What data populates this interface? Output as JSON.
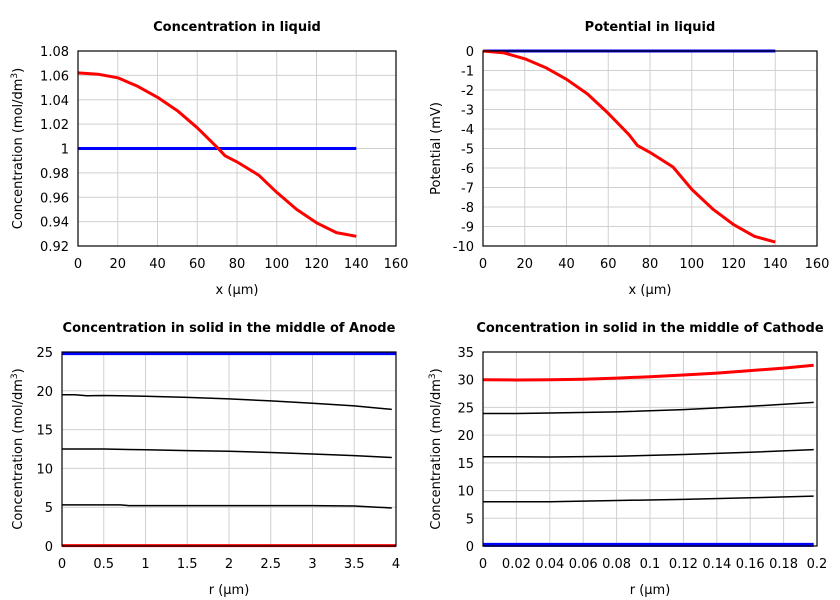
{
  "chart_data": [
    {
      "type": "line",
      "title": "Concentration in liquid",
      "xlabel": "x (µm)",
      "ylabel": "Concentration (mol/dm",
      "ylabel_sup": "3",
      "ylabel_end": ")",
      "xlim": [
        0,
        160
      ],
      "ylim": [
        0.92,
        1.08
      ],
      "grid": true,
      "xticks": [
        "0",
        "20",
        "40",
        "60",
        "80",
        "100",
        "120",
        "140",
        "160"
      ],
      "yticks": [
        "0.92",
        "0.94",
        "0.96",
        "0.98",
        "1",
        "1.02",
        "1.04",
        "1.06",
        "1.08"
      ],
      "series": [
        {
          "color": "#0000ff",
          "width": 3,
          "x": [
            0,
            140
          ],
          "y": [
            1,
            1
          ]
        },
        {
          "color": "#ff0000",
          "width": 3,
          "x": [
            0,
            10,
            20,
            30,
            40,
            50,
            60,
            70,
            74,
            80,
            91,
            100,
            110,
            120,
            130,
            140
          ],
          "y": [
            1.062,
            1.061,
            1.058,
            1.051,
            1.042,
            1.031,
            1.017,
            1.001,
            0.994,
            0.989,
            0.978,
            0.964,
            0.95,
            0.939,
            0.931,
            0.928
          ]
        }
      ]
    },
    {
      "type": "line",
      "title": "Potential in liquid",
      "xlabel": "x (µm)",
      "ylabel": "Potential (mV)",
      "ylabel_sup": "",
      "ylabel_end": "",
      "xlim": [
        0,
        160
      ],
      "ylim": [
        -10,
        0
      ],
      "grid": true,
      "xticks": [
        "0",
        "20",
        "40",
        "60",
        "80",
        "100",
        "120",
        "140",
        "160"
      ],
      "yticks": [
        "-10",
        "-9",
        "-8",
        "-7",
        "-6",
        "-5",
        "-4",
        "-3",
        "-2",
        "-1",
        "0"
      ],
      "series": [
        {
          "color": "#0000ff",
          "width": 3,
          "x": [
            0,
            140
          ],
          "y": [
            0,
            0
          ]
        },
        {
          "color": "#ff0000",
          "width": 3,
          "x": [
            0,
            10,
            20,
            30,
            40,
            50,
            60,
            70,
            74,
            80,
            91,
            100,
            110,
            120,
            130,
            140
          ],
          "y": [
            0,
            -0.1,
            -0.4,
            -0.85,
            -1.45,
            -2.2,
            -3.2,
            -4.3,
            -4.85,
            -5.2,
            -5.95,
            -7.1,
            -8.1,
            -8.9,
            -9.5,
            -9.8
          ]
        }
      ]
    },
    {
      "type": "line",
      "title": "Concentration in solid in the middle of Anode",
      "xlabel": "r (µm)",
      "ylabel": "Concentration (mol/dm",
      "ylabel_sup": "3",
      "ylabel_end": ")",
      "xlim": [
        0,
        4
      ],
      "ylim": [
        0,
        25
      ],
      "grid": true,
      "xticks": [
        "0",
        "0.5",
        "1",
        "1.5",
        "2",
        "2.5",
        "3",
        "3.5",
        "4"
      ],
      "yticks": [
        "0",
        "5",
        "10",
        "15",
        "20",
        "25"
      ],
      "series": [
        {
          "color": "#0000ff",
          "width": 3,
          "x": [
            0,
            4
          ],
          "y": [
            24.8,
            24.8
          ]
        },
        {
          "color": "#000000",
          "width": 1.5,
          "x": [
            0,
            0.15,
            0.3,
            0.5,
            1,
            1.5,
            2,
            2.5,
            3,
            3.5,
            3.95
          ],
          "y": [
            19.5,
            19.5,
            19.35,
            19.4,
            19.3,
            19.15,
            18.95,
            18.7,
            18.4,
            18.05,
            17.6
          ]
        },
        {
          "color": "#000000",
          "width": 1.5,
          "x": [
            0,
            0.5,
            1,
            1.5,
            2,
            2.5,
            3,
            3.5,
            3.95
          ],
          "y": [
            12.5,
            12.5,
            12.4,
            12.3,
            12.2,
            12.05,
            11.85,
            11.65,
            11.4
          ]
        },
        {
          "color": "#000000",
          "width": 1.5,
          "x": [
            0,
            0.7,
            0.8,
            1,
            2,
            3,
            3.5,
            3.95
          ],
          "y": [
            5.3,
            5.3,
            5.2,
            5.2,
            5.2,
            5.2,
            5.15,
            4.9
          ]
        },
        {
          "color": "#ff0000",
          "width": 3,
          "x": [
            0,
            4
          ],
          "y": [
            0.05,
            0.05
          ]
        }
      ]
    },
    {
      "type": "line",
      "title": "Concentration in solid in the middle of Cathode",
      "xlabel": "r (µm)",
      "ylabel": "Concentration (mol/dm",
      "ylabel_sup": "3",
      "ylabel_end": ")",
      "xlim": [
        0,
        0.2
      ],
      "ylim": [
        0,
        35
      ],
      "grid": true,
      "xticks": [
        "0",
        "0.02",
        "0.04",
        "0.06",
        "0.08",
        "0.1",
        "0.12",
        "0.14",
        "0.16",
        "0.18",
        "0.2"
      ],
      "yticks": [
        "0",
        "5",
        "10",
        "15",
        "20",
        "25",
        "30",
        "35"
      ],
      "series": [
        {
          "color": "#ff0000",
          "width": 3,
          "x": [
            0,
            0.02,
            0.04,
            0.06,
            0.08,
            0.1,
            0.12,
            0.14,
            0.16,
            0.18,
            0.198
          ],
          "y": [
            30,
            29.95,
            30,
            30.1,
            30.3,
            30.55,
            30.85,
            31.2,
            31.65,
            32.1,
            32.6
          ]
        },
        {
          "color": "#000000",
          "width": 1.5,
          "x": [
            0,
            0.02,
            0.04,
            0.08,
            0.12,
            0.16,
            0.198
          ],
          "y": [
            23.9,
            23.9,
            24.0,
            24.2,
            24.6,
            25.2,
            25.9
          ]
        },
        {
          "color": "#000000",
          "width": 1.5,
          "x": [
            0,
            0.02,
            0.04,
            0.08,
            0.12,
            0.16,
            0.198
          ],
          "y": [
            16.1,
            16.1,
            16.05,
            16.2,
            16.5,
            16.9,
            17.4
          ]
        },
        {
          "color": "#000000",
          "width": 1.5,
          "x": [
            0,
            0.02,
            0.04,
            0.08,
            0.12,
            0.16,
            0.198
          ],
          "y": [
            8.0,
            8.0,
            8.0,
            8.2,
            8.4,
            8.7,
            9.0
          ]
        },
        {
          "color": "#0000ff",
          "width": 4,
          "x": [
            0,
            0.198
          ],
          "y": [
            0.2,
            0.2
          ]
        }
      ]
    }
  ]
}
